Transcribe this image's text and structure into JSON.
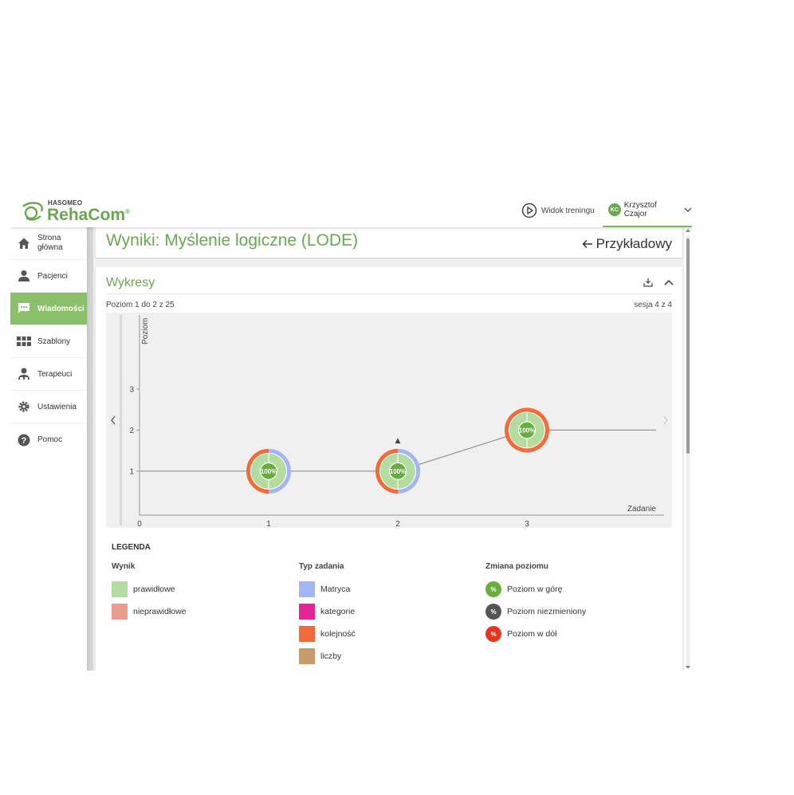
{
  "brand": {
    "maker": "Hasomeo",
    "product": "RehaCom",
    "reg": "®"
  },
  "topbar": {
    "training_view": "Widok treningu",
    "user_initials": "KC",
    "user_name": "Krzysztof Czajor"
  },
  "sidebar": {
    "items": [
      {
        "label": "Strona główna",
        "icon": "home-icon"
      },
      {
        "label": "Pacjenci",
        "icon": "person-icon"
      },
      {
        "label": "Wiadomości",
        "icon": "message-icon",
        "active": true
      },
      {
        "label": "Szablony",
        "icon": "grid-icon"
      },
      {
        "label": "Terapeuci",
        "icon": "therapist-icon"
      },
      {
        "label": "Ustawienia",
        "icon": "gear-icon"
      },
      {
        "label": "Pomoc",
        "icon": "help-icon"
      }
    ]
  },
  "header": {
    "title": "Wyniki: Myślenie logiczne (LODE)",
    "back_label": "Przykładowy"
  },
  "section": {
    "title": "Wykresy",
    "range_text": "Poziom 1 do 2 z 25",
    "session_text": "sesja 4 z 4"
  },
  "chart_data": {
    "type": "line",
    "x_label": "Zadanie",
    "y_label": "Poziom",
    "x_ticks": [
      0,
      1,
      2,
      3
    ],
    "y_ticks": [
      1,
      2,
      3
    ],
    "points": [
      {
        "x": 1,
        "y": 1,
        "label": "100%",
        "task_types": [
          "Matryca",
          "kolejność"
        ],
        "result": "prawidłowe"
      },
      {
        "x": 2,
        "y": 1,
        "label": "100%",
        "task_types": [
          "Matryca",
          "kolejność"
        ],
        "result": "prawidłowe",
        "marker": "▲"
      },
      {
        "x": 3,
        "y": 2,
        "label": "100%",
        "task_types": [
          "kolejność"
        ],
        "result": "prawidłowe"
      }
    ],
    "line_extends_to_x": 4
  },
  "legend": {
    "title": "LEGENDA",
    "result": {
      "title": "Wynik",
      "items": [
        {
          "label": "prawidłowe",
          "color": "#b5dca0"
        },
        {
          "label": "nieprawidłowe",
          "color": "#e89d8e"
        }
      ]
    },
    "task_type": {
      "title": "Typ zadania",
      "items": [
        {
          "label": "Matryca",
          "color": "#a2b6f5"
        },
        {
          "label": "kategorie",
          "color": "#e52594"
        },
        {
          "label": "kolejność",
          "color": "#f36a3b"
        },
        {
          "label": "liczby",
          "color": "#c79a6b"
        }
      ]
    },
    "level_change": {
      "title": "Zmiana poziomu",
      "symbol": "%",
      "items": [
        {
          "label": "Poziom w górę",
          "color": "#6aad3f"
        },
        {
          "label": "Poziom niezmieniony",
          "color": "#555555"
        },
        {
          "label": "Poziom w dół",
          "color": "#e8351e"
        }
      ]
    }
  }
}
